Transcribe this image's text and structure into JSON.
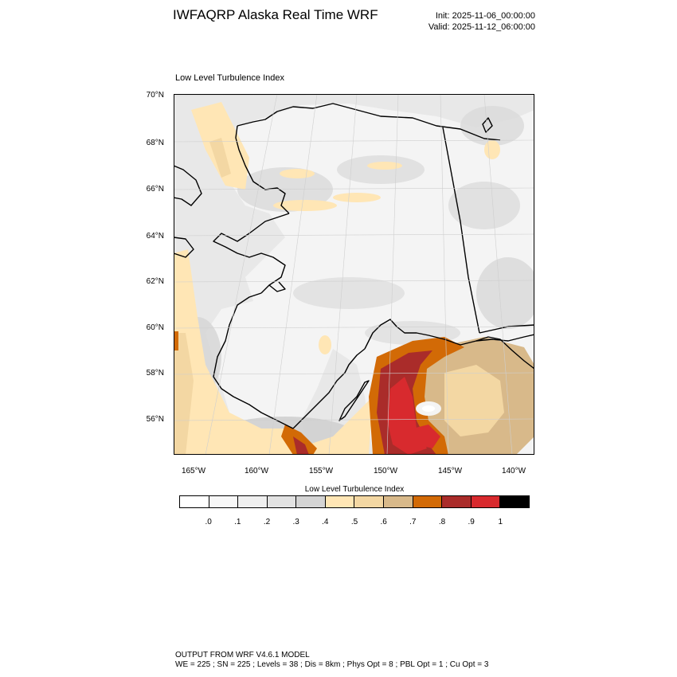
{
  "header": {
    "title": "IWFAQRP Alaska Real Time WRF",
    "init": "Init: 2025-11-06_00:00:00",
    "valid": "Valid: 2025-11-12_06:00:00"
  },
  "map": {
    "subtitle": "Low Level Turbulence Index",
    "lat_labels": [
      "70°N",
      "68°N",
      "66°N",
      "64°N",
      "62°N",
      "60°N",
      "58°N",
      "56°N"
    ],
    "lon_labels": [
      "165°W",
      "160°W",
      "155°W",
      "150°W",
      "145°W",
      "140°W"
    ],
    "fill_colors": {
      "land_base": "#f4f4f4",
      "ocean_base": "#e8e8e8",
      "gray_mid": "#d9d9d9",
      "gray_dark": "#c8c8c8",
      "tan_light": "#ffe6b5",
      "tan_mid": "#f3d7a3",
      "tan_dark": "#d8b98a",
      "orange": "#d26a06",
      "dark_red": "#aa2c2a",
      "red": "#d82a2e",
      "coast": "#000000"
    }
  },
  "legend": {
    "title": "Low Level Turbulence Index",
    "colors": [
      "#ffffff",
      "#f7f7f7",
      "#efefef",
      "#e2e2e2",
      "#d4d4d4",
      "#ffe6b5",
      "#f3d7a3",
      "#d8b98a",
      "#d26a06",
      "#aa2c2a",
      "#d82a2e",
      "#000000"
    ],
    "labels": [
      ".0",
      ".1",
      ".2",
      ".3",
      ".4",
      ".5",
      ".6",
      ".7",
      ".8",
      ".9",
      "1"
    ]
  },
  "footer": {
    "line1": "OUTPUT FROM WRF V4.6.1 MODEL",
    "line2": "WE = 225 ; SN = 225 ; Levels = 38 ; Dis = 8km ; Phys Opt = 8 ; PBL Opt = 1 ; Cu Opt = 3"
  }
}
